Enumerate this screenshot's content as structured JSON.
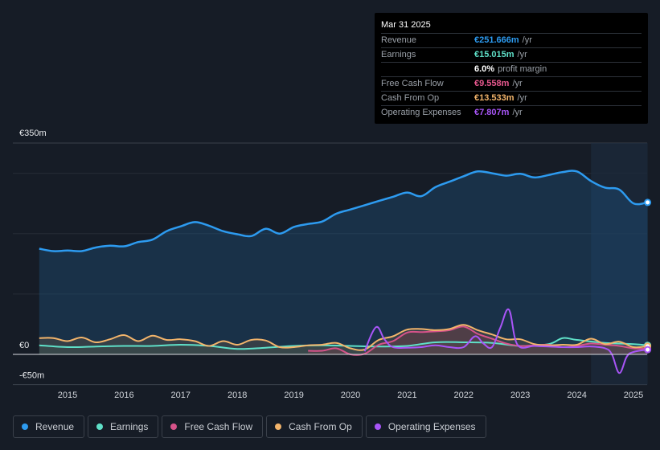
{
  "tooltip": {
    "date": "Mar 31 2025",
    "rows": [
      {
        "label": "Revenue",
        "value": "€251.666m",
        "unit": "/yr",
        "color": "#2d9bf0"
      },
      {
        "label": "Earnings",
        "value": "€15.015m",
        "unit": "/yr",
        "color": "#5fe0c8"
      },
      {
        "label": "",
        "value": "6.0%",
        "unit": "profit margin",
        "color": "#ffffff"
      },
      {
        "label": "Free Cash Flow",
        "value": "€9.558m",
        "unit": "/yr",
        "color": "#e8588f"
      },
      {
        "label": "Cash From Op",
        "value": "€13.533m",
        "unit": "/yr",
        "color": "#f2b46b"
      },
      {
        "label": "Operating Expenses",
        "value": "€7.807m",
        "unit": "/yr",
        "color": "#a855f7"
      }
    ]
  },
  "legend": [
    {
      "label": "Revenue",
      "color": "#2d9bf0"
    },
    {
      "label": "Earnings",
      "color": "#5fe0c8"
    },
    {
      "label": "Free Cash Flow",
      "color": "#d6538a"
    },
    {
      "label": "Cash From Op",
      "color": "#f2b46b"
    },
    {
      "label": "Operating Expenses",
      "color": "#a855f7"
    }
  ],
  "chart_data": {
    "type": "area",
    "y_unit": "€m",
    "ylim": [
      -50,
      350
    ],
    "y_tick_labels": [
      "€350m",
      "€0",
      "-€50m"
    ],
    "y_tick_values": [
      350,
      0,
      -50
    ],
    "gridlines": [
      300,
      200,
      100
    ],
    "xlim": [
      2014.5,
      2025.25
    ],
    "x_tick_labels": [
      "2015",
      "2016",
      "2017",
      "2018",
      "2019",
      "2020",
      "2021",
      "2022",
      "2023",
      "2024",
      "2025"
    ],
    "x_tick_values": [
      2015,
      2016,
      2017,
      2018,
      2019,
      2020,
      2021,
      2022,
      2023,
      2024,
      2025
    ],
    "highlight_range": [
      2024.25,
      2025.25
    ],
    "series": [
      {
        "name": "Revenue",
        "color": "#2d9bf0",
        "fill": true,
        "x": [
          2014.5,
          2014.75,
          2015.0,
          2015.25,
          2015.5,
          2015.75,
          2016.0,
          2016.25,
          2016.5,
          2016.75,
          2017.0,
          2017.25,
          2017.5,
          2017.75,
          2018.0,
          2018.25,
          2018.5,
          2018.75,
          2019.0,
          2019.25,
          2019.5,
          2019.75,
          2020.0,
          2020.25,
          2020.5,
          2020.75,
          2021.0,
          2021.25,
          2021.5,
          2021.75,
          2022.0,
          2022.25,
          2022.5,
          2022.75,
          2023.0,
          2023.25,
          2023.5,
          2023.75,
          2024.0,
          2024.25,
          2024.5,
          2024.75,
          2025.0,
          2025.25
        ],
        "values": [
          175,
          171,
          172,
          171,
          177,
          180,
          179,
          186,
          190,
          204,
          212,
          219,
          213,
          204,
          199,
          196,
          208,
          200,
          211,
          216,
          220,
          233,
          240,
          247,
          254,
          261,
          268,
          262,
          277,
          286,
          295,
          303,
          300,
          296,
          299,
          293,
          297,
          302,
          303,
          287,
          276,
          273,
          250,
          251.666
        ]
      },
      {
        "name": "Earnings",
        "color": "#5fe0c8",
        "fill": true,
        "x": [
          2014.5,
          2015.0,
          2015.5,
          2016.0,
          2016.5,
          2017.0,
          2017.5,
          2018.0,
          2018.5,
          2019.0,
          2019.5,
          2020.0,
          2020.5,
          2021.0,
          2021.5,
          2022.0,
          2022.5,
          2023.0,
          2023.5,
          2023.75,
          2024.0,
          2024.5,
          2025.0,
          2025.25
        ],
        "values": [
          15,
          12,
          13,
          14,
          14,
          16,
          14,
          9,
          11,
          14,
          15,
          14,
          13,
          14,
          20,
          20,
          19,
          14,
          17,
          27,
          24,
          19,
          17,
          15.015
        ]
      },
      {
        "name": "Free Cash Flow",
        "color": "#d6538a",
        "fill": true,
        "x": [
          2019.25,
          2019.5,
          2019.75,
          2020.0,
          2020.25,
          2020.5,
          2020.75,
          2021.0,
          2021.25,
          2021.5,
          2021.75,
          2022.0,
          2022.25,
          2022.5,
          2022.75,
          2023.0,
          2023.25,
          2023.5,
          2023.75,
          2024.0,
          2024.25,
          2024.5,
          2024.75,
          2025.0,
          2025.25
        ],
        "values": [
          6,
          6,
          10,
          0,
          1,
          16,
          22,
          36,
          37,
          38,
          40,
          46,
          34,
          26,
          18,
          14,
          15,
          16,
          12,
          14,
          18,
          16,
          14,
          10,
          9.558
        ]
      },
      {
        "name": "Cash From Op",
        "color": "#f2b46b",
        "fill": true,
        "x": [
          2014.5,
          2014.75,
          2015.0,
          2015.25,
          2015.5,
          2015.75,
          2016.0,
          2016.25,
          2016.5,
          2016.75,
          2017.0,
          2017.25,
          2017.5,
          2017.75,
          2018.0,
          2018.25,
          2018.5,
          2018.75,
          2019.0,
          2019.25,
          2019.5,
          2019.75,
          2020.0,
          2020.25,
          2020.5,
          2020.75,
          2021.0,
          2021.25,
          2021.5,
          2021.75,
          2022.0,
          2022.25,
          2022.5,
          2022.75,
          2023.0,
          2023.25,
          2023.5,
          2023.75,
          2024.0,
          2024.25,
          2024.5,
          2024.75,
          2025.0,
          2025.25
        ],
        "values": [
          27,
          27,
          22,
          28,
          20,
          25,
          32,
          22,
          31,
          24,
          25,
          22,
          14,
          22,
          16,
          24,
          23,
          12,
          12,
          15,
          16,
          19,
          10,
          8,
          24,
          30,
          41,
          42,
          40,
          42,
          49,
          40,
          33,
          25,
          25,
          17,
          15,
          16,
          16,
          26,
          17,
          21,
          12,
          13.533
        ]
      },
      {
        "name": "Operating Expenses",
        "color": "#a855f7",
        "fill": false,
        "x": [
          2020.25,
          2020.45,
          2020.6,
          2020.75,
          2021.0,
          2021.25,
          2021.5,
          2021.75,
          2022.0,
          2022.2,
          2022.35,
          2022.5,
          2022.65,
          2022.8,
          2022.95,
          2023.25,
          2023.5,
          2023.75,
          2024.0,
          2024.25,
          2024.5,
          2024.62,
          2024.75,
          2024.88,
          2025.0,
          2025.25
        ],
        "values": [
          5,
          45,
          25,
          12,
          11,
          12,
          15,
          12,
          12,
          30,
          18,
          12,
          45,
          74,
          16,
          14,
          13,
          12,
          12,
          13,
          10,
          0,
          -31,
          -4,
          4,
          7.807
        ]
      }
    ]
  }
}
